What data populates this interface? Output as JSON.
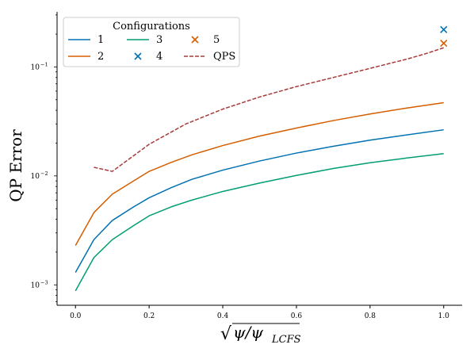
{
  "chart_data": {
    "type": "line",
    "xlabel": "√ψ/ψ_LCFS",
    "xlabel_parts": {
      "radical": "√",
      "base": "ψ/ψ",
      "subscript": "LCFS"
    },
    "ylabel": "QP Error",
    "xlim": [
      -0.05,
      1.05
    ],
    "ylim": [
      0.00065,
      0.32
    ],
    "yscale": "log",
    "grid": false,
    "xticks": [
      0.0,
      0.2,
      0.4,
      0.6,
      0.8,
      1.0
    ],
    "xtick_labels": [
      "0.0",
      "0.2",
      "0.4",
      "0.6",
      "0.8",
      "1.0"
    ],
    "ytick_labels": [
      {
        "value": 0.001,
        "base": "10",
        "exp": "−3"
      },
      {
        "value": 0.01,
        "base": "10",
        "exp": "−2"
      },
      {
        "value": 0.1,
        "base": "10",
        "exp": "−1"
      }
    ],
    "legend": {
      "title": "Configurations",
      "placement": "top-left",
      "columns": 3
    },
    "series": [
      {
        "name": "1",
        "kind": "line",
        "color": "#0072b2",
        "x": [
          0.0,
          0.05,
          0.1,
          0.158,
          0.2,
          0.26,
          0.316,
          0.4,
          0.5,
          0.6,
          0.7,
          0.8,
          0.9,
          1.0
        ],
        "y": [
          0.0013,
          0.0026,
          0.0039,
          0.0052,
          0.0063,
          0.0078,
          0.0093,
          0.0113,
          0.0137,
          0.0162,
          0.0187,
          0.0213,
          0.0238,
          0.0265
        ]
      },
      {
        "name": "2",
        "kind": "line",
        "color": "#d55e00",
        "x": [
          0.0,
          0.05,
          0.1,
          0.158,
          0.2,
          0.26,
          0.316,
          0.4,
          0.5,
          0.6,
          0.7,
          0.8,
          0.9,
          1.0
        ],
        "y": [
          0.0023,
          0.0046,
          0.0068,
          0.009,
          0.011,
          0.0133,
          0.0156,
          0.019,
          0.0232,
          0.0275,
          0.0322,
          0.037,
          0.042,
          0.047
        ]
      },
      {
        "name": "3",
        "kind": "line",
        "color": "#009e73",
        "x": [
          0.0,
          0.05,
          0.1,
          0.158,
          0.2,
          0.26,
          0.316,
          0.4,
          0.5,
          0.6,
          0.7,
          0.8,
          0.9,
          1.0
        ],
        "y": [
          0.00088,
          0.00178,
          0.0026,
          0.0035,
          0.0043,
          0.0052,
          0.006,
          0.0072,
          0.0086,
          0.0101,
          0.0117,
          0.0132,
          0.0146,
          0.016
        ]
      },
      {
        "name": "4",
        "kind": "marker",
        "marker": "x",
        "color": "#0072b2",
        "x": [
          1.0
        ],
        "y": [
          0.22
        ]
      },
      {
        "name": "5",
        "kind": "marker",
        "marker": "x",
        "color": "#d55e00",
        "x": [
          1.0
        ],
        "y": [
          0.165
        ]
      },
      {
        "name": "QPS",
        "kind": "dashed",
        "color": "#a83a3a",
        "x": [
          0.05,
          0.1,
          0.2,
          0.3,
          0.4,
          0.5,
          0.6,
          0.7,
          0.8,
          0.9,
          0.95,
          1.0
        ],
        "y": [
          0.012,
          0.011,
          0.0195,
          0.03,
          0.041,
          0.053,
          0.066,
          0.08,
          0.097,
          0.118,
          0.132,
          0.15
        ]
      }
    ]
  }
}
